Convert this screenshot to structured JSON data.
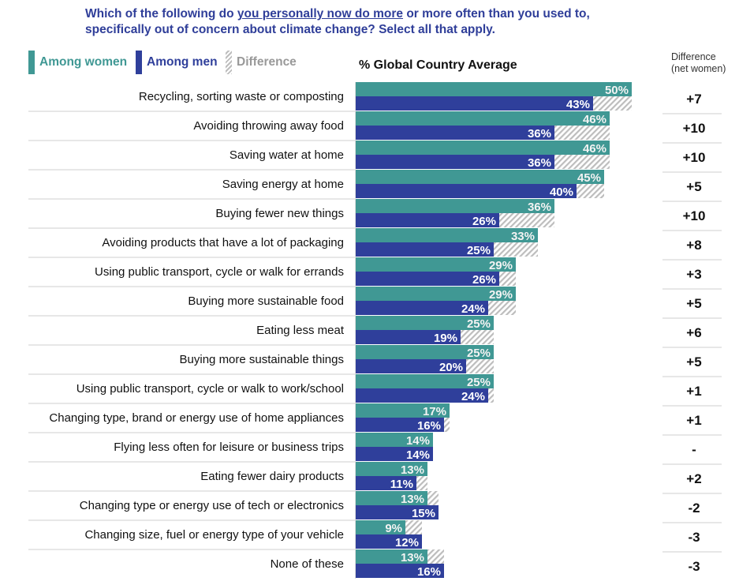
{
  "title": {
    "line1_pre": "Which of the following do ",
    "line1_underlined": "you personally now do more",
    "line1_post": " or more often than you used to,",
    "line2": "specifically out of concern about climate change? Select all that apply."
  },
  "chart_data": {
    "type": "bar",
    "subtitle": "% Global Country Average",
    "difference_header": [
      "Difference",
      "(net women)"
    ],
    "colors": {
      "women": "#409894",
      "men": "#2f3f9b",
      "difference": "#bdbdbd",
      "title": "#2f3e99"
    },
    "legend": [
      {
        "name": "Among women",
        "color": "#409894"
      },
      {
        "name": "Among men",
        "color": "#2f3f9b"
      },
      {
        "name": "Difference",
        "pattern": "hatched"
      }
    ],
    "legend_placement": "top-left",
    "xlim": [
      0,
      100
    ],
    "categories": [
      "Recycling, sorting waste or composting",
      "Avoiding throwing away food",
      "Saving water at home",
      "Saving energy at home",
      "Buying fewer new things",
      "Avoiding products that have a lot of packaging",
      "Using public transport, cycle or walk for errands",
      "Buying more sustainable food",
      "Eating less meat",
      "Buying more sustainable things",
      "Using public transport, cycle or walk to work/school",
      "Changing type, brand or energy use of home appliances",
      "Flying less often for leisure or business trips",
      "Eating fewer dairy products",
      "Changing type or energy use of tech or electronics",
      "Changing size, fuel or energy type of your vehicle",
      "None of these"
    ],
    "series": [
      {
        "name": "Among women",
        "values": [
          50,
          46,
          46,
          45,
          36,
          33,
          29,
          29,
          25,
          25,
          25,
          17,
          14,
          13,
          13,
          9,
          13
        ]
      },
      {
        "name": "Among men",
        "values": [
          43,
          36,
          36,
          40,
          26,
          25,
          26,
          24,
          19,
          20,
          24,
          16,
          14,
          11,
          15,
          12,
          16
        ]
      }
    ],
    "difference": [
      "+7",
      "+10",
      "+10",
      "+5",
      "+10",
      "+8",
      "+3",
      "+5",
      "+6",
      "+5",
      "+1",
      "+1",
      "-",
      "+2",
      "-2",
      "-3",
      "-3"
    ]
  }
}
